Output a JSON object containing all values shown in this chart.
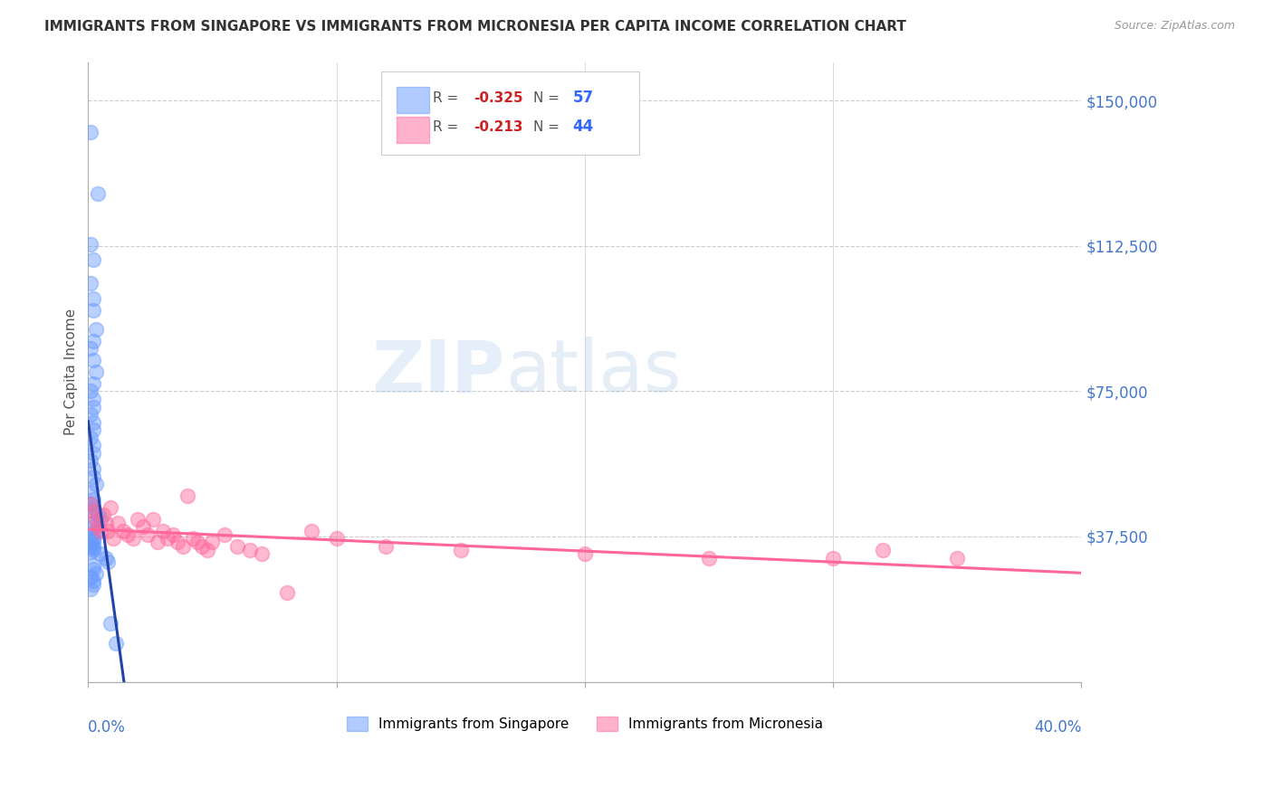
{
  "title": "IMMIGRANTS FROM SINGAPORE VS IMMIGRANTS FROM MICRONESIA PER CAPITA INCOME CORRELATION CHART",
  "source": "Source: ZipAtlas.com",
  "ylabel": "Per Capita Income",
  "yticks": [
    0,
    37500,
    75000,
    112500,
    150000
  ],
  "ytick_labels": [
    "",
    "$37,500",
    "$75,000",
    "$112,500",
    "$150,000"
  ],
  "xlim": [
    0.0,
    0.4
  ],
  "ylim": [
    0,
    160000
  ],
  "watermark_zip": "ZIP",
  "watermark_atlas": "atlas",
  "singapore_color": "#6699FF",
  "micronesia_color": "#FF6699",
  "singapore_x": [
    0.001,
    0.004,
    0.001,
    0.002,
    0.001,
    0.002,
    0.002,
    0.003,
    0.002,
    0.001,
    0.002,
    0.003,
    0.002,
    0.001,
    0.002,
    0.002,
    0.001,
    0.002,
    0.002,
    0.001,
    0.002,
    0.002,
    0.001,
    0.002,
    0.002,
    0.003,
    0.001,
    0.002,
    0.001,
    0.002,
    0.002,
    0.004,
    0.005,
    0.002,
    0.002,
    0.003,
    0.001,
    0.002,
    0.002,
    0.001,
    0.002,
    0.001,
    0.002,
    0.002,
    0.001,
    0.005,
    0.007,
    0.008,
    0.009,
    0.011,
    0.002,
    0.002,
    0.003,
    0.001,
    0.002,
    0.002,
    0.001
  ],
  "singapore_y": [
    142000,
    126000,
    113000,
    109000,
    103000,
    99000,
    96000,
    91000,
    88000,
    86000,
    83000,
    80000,
    77000,
    75000,
    73000,
    71000,
    69000,
    67000,
    65000,
    63000,
    61000,
    59000,
    57000,
    55000,
    53000,
    51000,
    49000,
    47000,
    46000,
    45000,
    44000,
    43000,
    42000,
    41000,
    40000,
    39000,
    38000,
    37000,
    36500,
    36000,
    35500,
    35000,
    34500,
    34000,
    33500,
    33000,
    32000,
    31000,
    15000,
    10000,
    30000,
    29000,
    28000,
    27000,
    26000,
    25000,
    24000
  ],
  "micronesia_x": [
    0.001,
    0.002,
    0.003,
    0.004,
    0.005,
    0.006,
    0.007,
    0.008,
    0.009,
    0.01,
    0.012,
    0.014,
    0.016,
    0.018,
    0.02,
    0.022,
    0.024,
    0.026,
    0.028,
    0.03,
    0.032,
    0.034,
    0.036,
    0.038,
    0.04,
    0.042,
    0.044,
    0.046,
    0.048,
    0.05,
    0.055,
    0.06,
    0.065,
    0.07,
    0.08,
    0.09,
    0.1,
    0.12,
    0.15,
    0.2,
    0.25,
    0.3,
    0.32,
    0.35
  ],
  "micronesia_y": [
    46000,
    44000,
    42000,
    40000,
    39000,
    43000,
    41000,
    39000,
    45000,
    37000,
    41000,
    39000,
    38000,
    37000,
    42000,
    40000,
    38000,
    42000,
    36000,
    39000,
    37000,
    38000,
    36000,
    35000,
    48000,
    37000,
    36000,
    35000,
    34000,
    36000,
    38000,
    35000,
    34000,
    33000,
    23000,
    39000,
    37000,
    35000,
    34000,
    33000,
    32000,
    32000,
    34000,
    32000
  ],
  "background_color": "#FFFFFF",
  "grid_color": "#CCCCCC",
  "title_color": "#333333",
  "tick_color": "#4477CC",
  "source_color": "#999999"
}
